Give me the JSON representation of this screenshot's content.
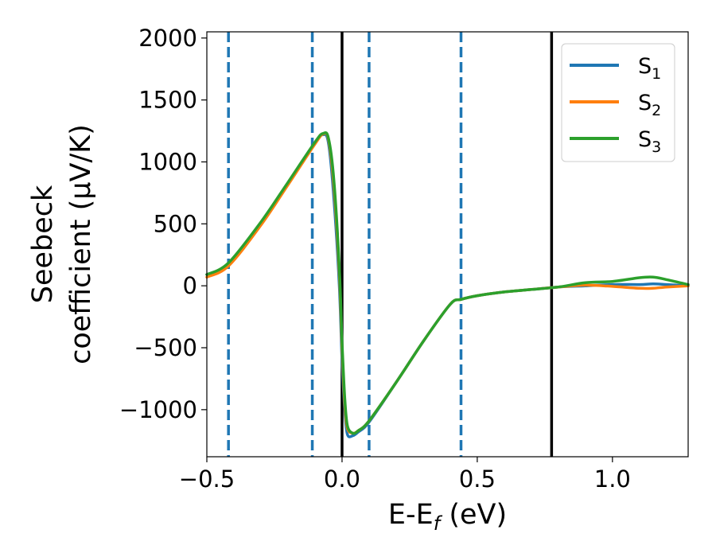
{
  "chart_data": {
    "type": "line",
    "xlabel": "E-E",
    "xlabel_sub": "f",
    "xlabel_unit": " (eV)",
    "ylabel_line1": "Seebeck",
    "ylabel_line2": "coefficient  (μV/K)",
    "xlim": [
      -0.5,
      1.28
    ],
    "ylim": [
      -1380,
      2050
    ],
    "x_ticks": [
      -0.5,
      0.0,
      0.5,
      1.0
    ],
    "x_tick_labels": [
      "−0.5",
      "0.0",
      "0.5",
      "1.0"
    ],
    "y_ticks": [
      -1000,
      -500,
      0,
      500,
      1000,
      1500,
      2000
    ],
    "y_tick_labels": [
      "−1000",
      "−500",
      "0",
      "500",
      "1000",
      "1500",
      "2000"
    ],
    "grid": false,
    "legend_position": "top-right",
    "vlines_dashed": {
      "x": [
        -0.42,
        -0.11,
        0.1,
        0.44
      ],
      "color": "#1f77b4"
    },
    "vlines_solid": {
      "x": [
        0.0,
        0.775
      ],
      "color": "#000000"
    },
    "series": [
      {
        "name": "S",
        "sub": "1",
        "color": "#1f77b4",
        "x": [
          -0.5,
          -0.42,
          -0.3,
          -0.2,
          -0.1,
          -0.07,
          -0.05,
          -0.03,
          -0.01,
          0.0,
          0.01,
          0.02,
          0.04,
          0.06,
          0.1,
          0.2,
          0.3,
          0.4,
          0.44,
          0.5,
          0.6,
          0.7,
          0.8,
          0.9,
          1.0,
          1.1,
          1.15,
          1.2,
          1.28
        ],
        "y": [
          90,
          180,
          510,
          830,
          1150,
          1220,
          1150,
          700,
          0,
          -600,
          -1000,
          -1200,
          -1210,
          -1180,
          -1100,
          -780,
          -450,
          -150,
          -110,
          -80,
          -50,
          -30,
          -10,
          0,
          10,
          10,
          15,
          10,
          0
        ]
      },
      {
        "name": "S",
        "sub": "2",
        "color": "#ff7f0e",
        "x": [
          -0.5,
          -0.42,
          -0.3,
          -0.2,
          -0.1,
          -0.07,
          -0.05,
          -0.03,
          -0.01,
          0.0,
          0.01,
          0.02,
          0.04,
          0.06,
          0.1,
          0.2,
          0.3,
          0.4,
          0.44,
          0.5,
          0.6,
          0.7,
          0.8,
          0.9,
          1.0,
          1.1,
          1.15,
          1.2,
          1.28
        ],
        "y": [
          70,
          160,
          490,
          815,
          1145,
          1225,
          1180,
          800,
          100,
          -500,
          -950,
          -1150,
          -1190,
          -1170,
          -1090,
          -780,
          -450,
          -150,
          -110,
          -80,
          -50,
          -30,
          -10,
          5,
          -5,
          -20,
          -20,
          -10,
          0
        ]
      },
      {
        "name": "S",
        "sub": "3",
        "color": "#2ca02c",
        "x": [
          -0.5,
          -0.42,
          -0.3,
          -0.2,
          -0.1,
          -0.07,
          -0.05,
          -0.03,
          -0.01,
          0.0,
          0.01,
          0.02,
          0.04,
          0.06,
          0.1,
          0.2,
          0.3,
          0.4,
          0.44,
          0.5,
          0.6,
          0.7,
          0.8,
          0.9,
          1.0,
          1.1,
          1.15,
          1.2,
          1.28
        ],
        "y": [
          90,
          185,
          515,
          835,
          1160,
          1230,
          1190,
          850,
          150,
          -450,
          -900,
          -1130,
          -1190,
          -1170,
          -1090,
          -780,
          -450,
          -150,
          -110,
          -80,
          -50,
          -30,
          -10,
          25,
          35,
          65,
          70,
          50,
          10
        ]
      }
    ]
  }
}
